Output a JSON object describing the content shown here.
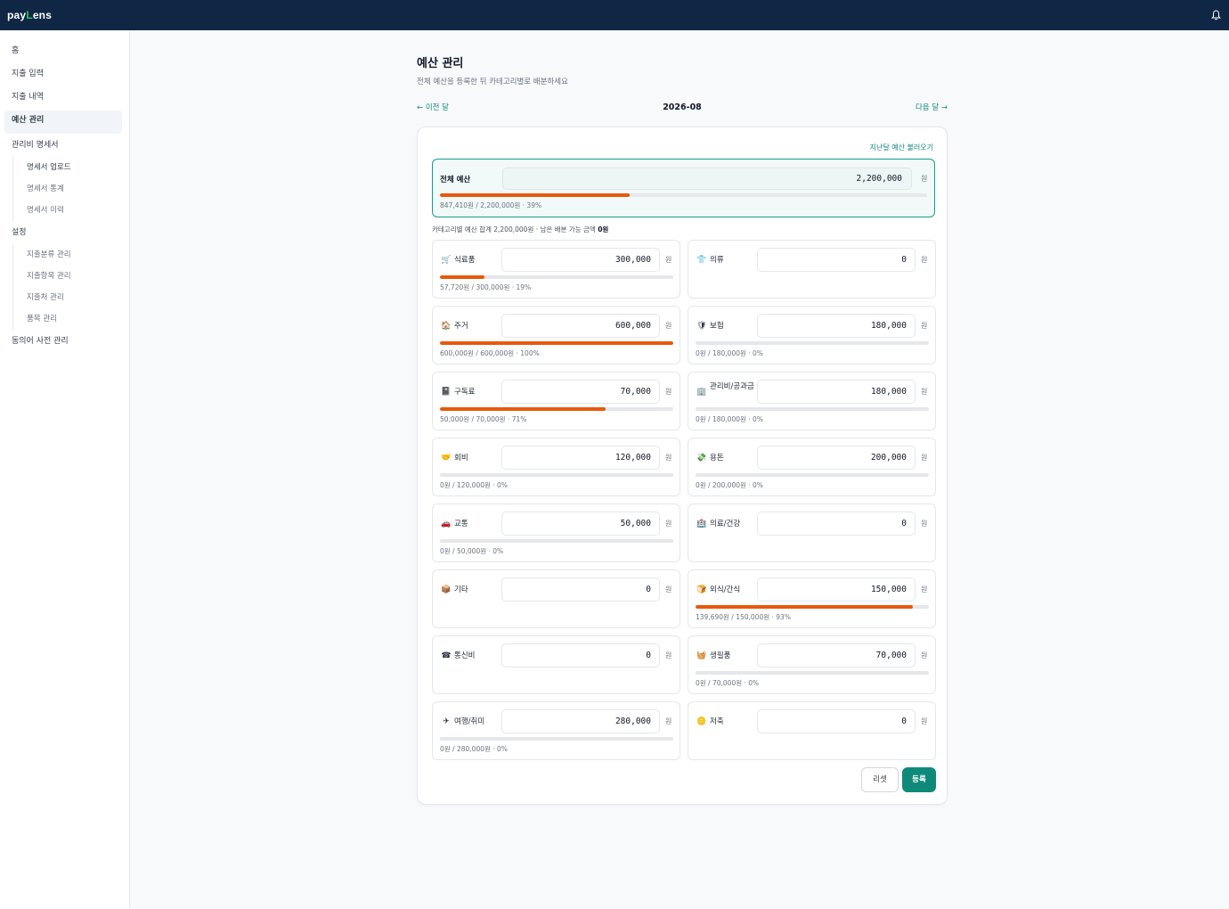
{
  "app": {
    "logo_left": "pay",
    "logo_mid": "L",
    "logo_right": "ens"
  },
  "sidebar": {
    "home": "홈",
    "expense_input": "지출 입력",
    "expense_history": "지출 내역",
    "budget": "예산 관리",
    "statement_group": "관리비 명세서",
    "statement_upload": "명세서 업로드",
    "statement_stats": "명세서 통계",
    "statement_history": "명세서 이력",
    "settings_group": "설정",
    "category_manage": "지출분류 관리",
    "item_manage": "지출항목 관리",
    "vendor_manage": "지출처 관리",
    "product_manage": "품목 관리",
    "synonym_manage": "동의어 사전 관리"
  },
  "page": {
    "title": "예산 관리",
    "subtitle": "전체 예산을 등록한 뒤 카테고리별로 배분하세요",
    "prev_month": "← 이전 달",
    "month": "2026-08",
    "next_month": "다음 달 →",
    "load_prev": "지난달 예산 불러오기",
    "total_label": "전체 예산",
    "total_value": "2,200,000",
    "won": "원",
    "total_progress_text": "847,410원 / 2,200,000원 · 39%",
    "total_progress_ratio": 0.39,
    "alloc_text": "카테고리별 예산 합계 2,200,000원 · 남은 배분 가능 금액 ",
    "alloc_remaining": "0원",
    "reset": "리셋",
    "submit": "등록"
  },
  "colors": {
    "accent": "#0f8a7a",
    "progress": "#ea580c",
    "topbar": "#0f2744"
  },
  "categories": [
    {
      "icon": "🛒",
      "icon_name": "cart-icon",
      "name": "식료품",
      "value": "300,000",
      "progress": "57,720원 / 300,000원 · 19%",
      "ratio": 0.19
    },
    {
      "icon": "👕",
      "icon_name": "shirt-icon",
      "name": "의류",
      "value": "0",
      "progress": "",
      "ratio": null
    },
    {
      "icon": "🏠",
      "icon_name": "house-icon",
      "name": "주거",
      "value": "600,000",
      "progress": "600,000원 / 600,000원 · 100%",
      "ratio": 1.0
    },
    {
      "icon": "🛡",
      "icon_name": "shield-icon",
      "name": "보험",
      "value": "180,000",
      "progress": "0원 / 180,000원 · 0%",
      "ratio": 0
    },
    {
      "icon": "📓",
      "icon_name": "notebook-icon",
      "name": "구독료",
      "value": "70,000",
      "progress": "50,000원 / 70,000원 · 71%",
      "ratio": 0.71
    },
    {
      "icon": "🏢",
      "icon_name": "building-icon",
      "name": "관리비/공과금",
      "value": "180,000",
      "progress": "0원 / 180,000원 · 0%",
      "ratio": 0
    },
    {
      "icon": "🤝",
      "icon_name": "handshake-icon",
      "name": "회비",
      "value": "120,000",
      "progress": "0원 / 120,000원 · 0%",
      "ratio": 0
    },
    {
      "icon": "💸",
      "icon_name": "money-icon",
      "name": "용돈",
      "value": "200,000",
      "progress": "0원 / 200,000원 · 0%",
      "ratio": 0
    },
    {
      "icon": "🚗",
      "icon_name": "car-icon",
      "name": "교통",
      "value": "50,000",
      "progress": "0원 / 50,000원 · 0%",
      "ratio": 0
    },
    {
      "icon": "🏥",
      "icon_name": "hospital-icon",
      "name": "의료/건강",
      "value": "0",
      "progress": "",
      "ratio": null
    },
    {
      "icon": "📦",
      "icon_name": "box-icon",
      "name": "기타",
      "value": "0",
      "progress": "",
      "ratio": null
    },
    {
      "icon": "🍞",
      "icon_name": "snack-icon",
      "name": "외식/간식",
      "value": "150,000",
      "progress": "139,690원 / 150,000원 · 93%",
      "ratio": 0.93
    },
    {
      "icon": "☎",
      "icon_name": "phone-icon",
      "name": "통신비",
      "value": "0",
      "progress": "",
      "ratio": null
    },
    {
      "icon": "🧺",
      "icon_name": "basket-icon",
      "name": "생필품",
      "value": "70,000",
      "progress": "0원 / 70,000원 · 0%",
      "ratio": 0
    },
    {
      "icon": "✈",
      "icon_name": "plane-icon",
      "name": "여행/취미",
      "value": "280,000",
      "progress": "0원 / 280,000원 · 0%",
      "ratio": 0
    },
    {
      "icon": "🪙",
      "icon_name": "coin-icon",
      "name": "저축",
      "value": "0",
      "progress": "",
      "ratio": null
    }
  ]
}
